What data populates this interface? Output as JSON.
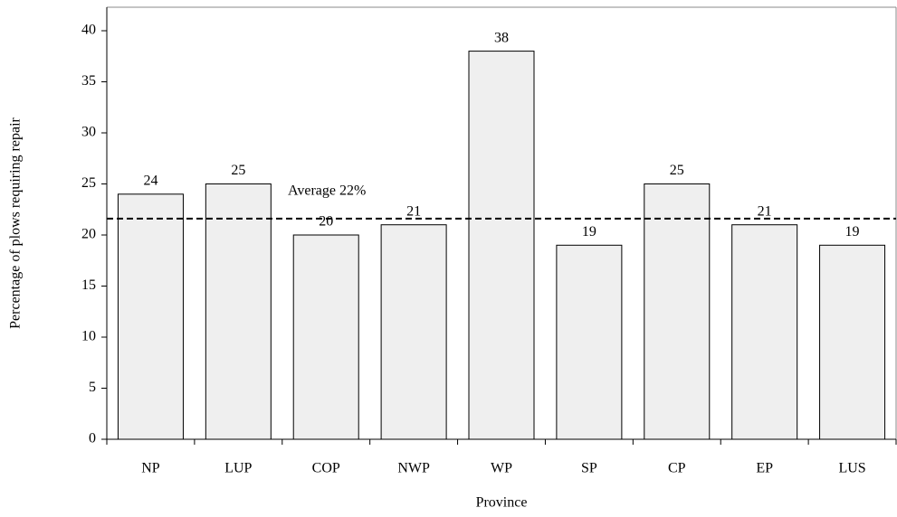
{
  "chart_data": {
    "type": "bar",
    "x_label": "Province",
    "y_label": "Percentage of plows requiring repair",
    "categories": [
      "NP",
      "LUP",
      "COP",
      "NWP",
      "WP",
      "SP",
      "CP",
      "EP",
      "LUS"
    ],
    "values": [
      24,
      25,
      20,
      21,
      38,
      19,
      25,
      21,
      19
    ],
    "color": "#efefef",
    "ylim": [
      0,
      42.3
    ],
    "yticks": [
      0,
      5,
      10,
      15,
      20,
      25,
      30,
      35,
      40
    ],
    "average": {
      "value": 21.6,
      "label": "Average 22%"
    }
  }
}
